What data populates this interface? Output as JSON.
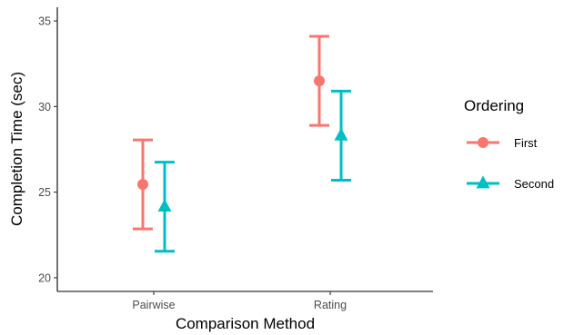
{
  "chart_data": {
    "type": "errorbar",
    "xlabel": "Comparison Method",
    "ylabel": "Completion Time (sec)",
    "categories": [
      "Pairwise",
      "Rating"
    ],
    "y_ticks": [
      "20",
      "25",
      "30",
      "35"
    ],
    "ylim": [
      19.2,
      35.8
    ],
    "grid": false,
    "legend": {
      "title": "Ordering",
      "position": "right"
    },
    "series": [
      {
        "name": "First",
        "color": "#F8766D",
        "marker": "circle",
        "points": [
          {
            "x": "Pairwise",
            "y": 25.45,
            "low": 22.85,
            "high": 28.05
          },
          {
            "x": "Rating",
            "y": 31.5,
            "low": 28.9,
            "high": 34.1
          }
        ]
      },
      {
        "name": "Second",
        "color": "#00BFC4",
        "marker": "triangle",
        "points": [
          {
            "x": "Pairwise",
            "y": 24.15,
            "low": 21.55,
            "high": 26.75
          },
          {
            "x": "Rating",
            "y": 28.3,
            "low": 25.7,
            "high": 30.9
          }
        ]
      }
    ]
  }
}
